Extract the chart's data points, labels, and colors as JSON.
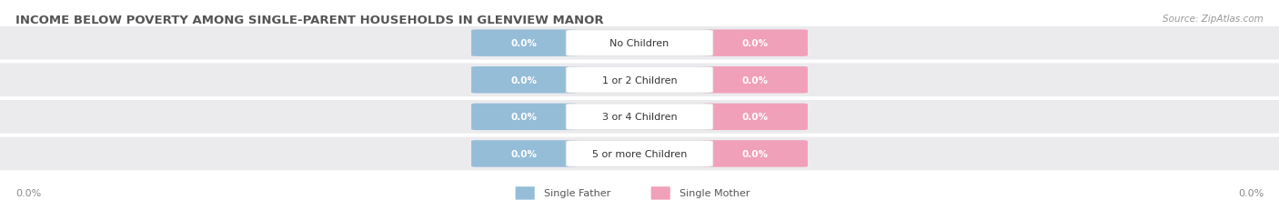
{
  "title": "INCOME BELOW POVERTY AMONG SINGLE-PARENT HOUSEHOLDS IN GLENVIEW MANOR",
  "source": "Source: ZipAtlas.com",
  "categories": [
    "No Children",
    "1 or 2 Children",
    "3 or 4 Children",
    "5 or more Children"
  ],
  "father_values": [
    0.0,
    0.0,
    0.0,
    0.0
  ],
  "mother_values": [
    0.0,
    0.0,
    0.0,
    0.0
  ],
  "father_color": "#95BDD8",
  "mother_color": "#F0A0B8",
  "row_bg_color": "#EBEBEE",
  "background_color": "#FFFFFF",
  "title_fontsize": 9.5,
  "source_fontsize": 7.5,
  "label_fontsize": 8,
  "value_fontsize": 7.5,
  "axis_label_left": "0.0%",
  "axis_label_right": "0.0%",
  "legend_father": "Single Father",
  "legend_mother": "Single Mother"
}
